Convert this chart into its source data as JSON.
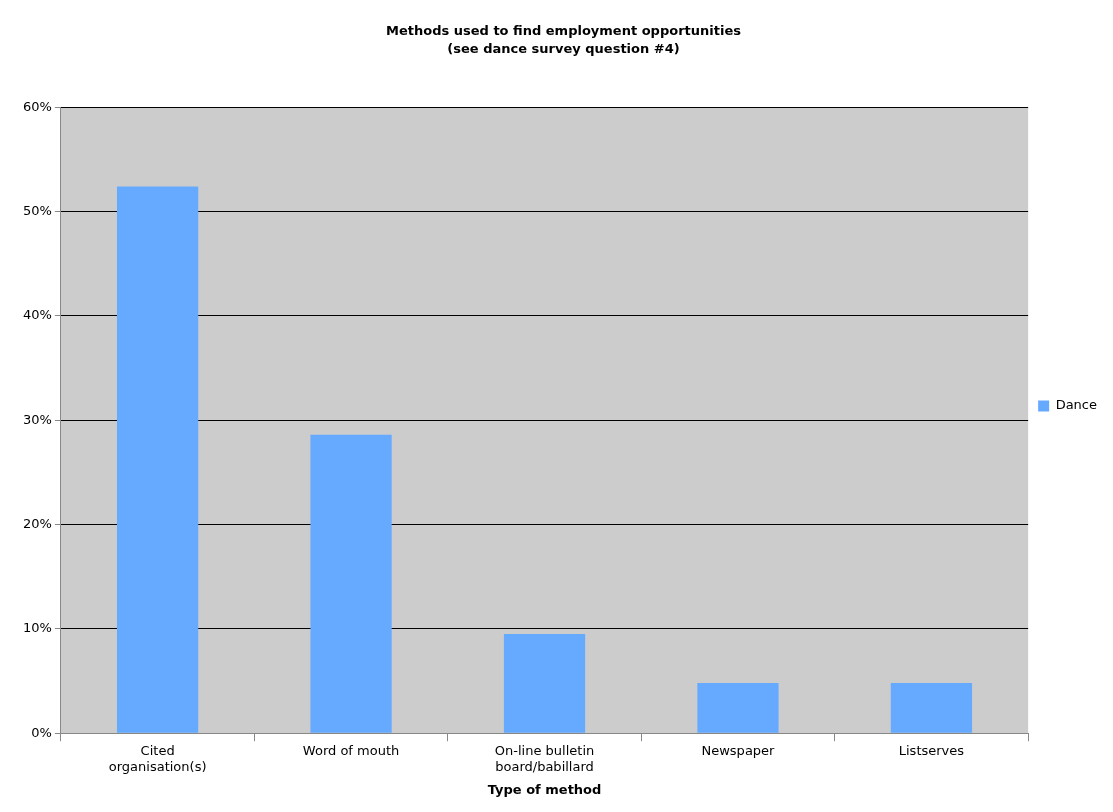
{
  "chart_data": {
    "type": "bar",
    "title": "Methods used to find employment opportunities",
    "subtitle": "(see dance survey question #4)",
    "xlabel": "Type of method",
    "categories": [
      "Cited organisation(s)",
      "Word of mouth",
      "On-line bulletin board/babillard",
      "Newspaper",
      "Listserves"
    ],
    "series": [
      {
        "name": "Dance",
        "color": "#66aaff",
        "values": [
          52.4,
          28.6,
          9.5,
          4.8,
          4.8
        ]
      }
    ],
    "ylim": [
      0,
      60
    ],
    "yticks": [
      {
        "value": 0,
        "label": "0%"
      },
      {
        "value": 10,
        "label": "10%"
      },
      {
        "value": 20,
        "label": "20%"
      },
      {
        "value": 30,
        "label": "30%"
      },
      {
        "value": 40,
        "label": "40%"
      },
      {
        "value": 50,
        "label": "50%"
      },
      {
        "value": 60,
        "label": "60%"
      }
    ],
    "grid": "y",
    "legend": "right"
  }
}
